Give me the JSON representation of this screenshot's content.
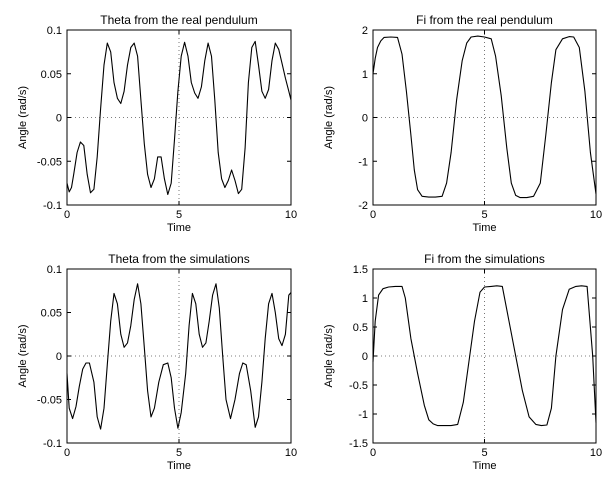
{
  "chart_data": [
    {
      "type": "line",
      "title": "Theta from the real pendulum",
      "xlabel": "Time",
      "ylabel": "Angle (rad/s)",
      "xlim": [
        0,
        10
      ],
      "ylim": [
        -0.1,
        0.1
      ],
      "xticks": [
        "0",
        "5",
        "10"
      ],
      "yticks": [
        "-0.1",
        "-0.05",
        "0",
        "0.05",
        "0.1"
      ],
      "grid": "dotted at x=5 and y=0",
      "series": [
        {
          "x": [
            0,
            0.1,
            0.2,
            0.3,
            0.45,
            0.6,
            0.75,
            0.9,
            1.05,
            1.2,
            1.35,
            1.5,
            1.65,
            1.8,
            1.95,
            2.1,
            2.25,
            2.4,
            2.55,
            2.7,
            2.85,
            3.0,
            3.15,
            3.3,
            3.45,
            3.6,
            3.75,
            3.9,
            4.05,
            4.2,
            4.35,
            4.5,
            4.65,
            4.8,
            4.95,
            5.1,
            5.25,
            5.4,
            5.55,
            5.7,
            5.85,
            6.0,
            6.15,
            6.3,
            6.45,
            6.6,
            6.75,
            6.9,
            7.05,
            7.2,
            7.35,
            7.5,
            7.65,
            7.8,
            7.95,
            8.1,
            8.25,
            8.4,
            8.55,
            8.7,
            8.85,
            9.0,
            9.15,
            9.3,
            9.45,
            9.6,
            9.75,
            9.9,
            10.0
          ],
          "y": [
            -0.075,
            -0.085,
            -0.08,
            -0.065,
            -0.04,
            -0.028,
            -0.032,
            -0.065,
            -0.086,
            -0.082,
            -0.045,
            0.01,
            0.06,
            0.085,
            0.075,
            0.04,
            0.022,
            0.016,
            0.03,
            0.06,
            0.08,
            0.085,
            0.07,
            0.02,
            -0.03,
            -0.065,
            -0.08,
            -0.07,
            -0.045,
            -0.045,
            -0.07,
            -0.088,
            -0.075,
            -0.025,
            0.03,
            0.07,
            0.086,
            0.07,
            0.04,
            0.028,
            0.022,
            0.035,
            0.065,
            0.085,
            0.07,
            0.02,
            -0.04,
            -0.07,
            -0.08,
            -0.072,
            -0.06,
            -0.072,
            -0.087,
            -0.082,
            -0.035,
            0.04,
            0.08,
            0.087,
            0.06,
            0.03,
            0.022,
            0.032,
            0.065,
            0.085,
            0.078,
            0.062,
            0.045,
            0.03,
            0.02
          ]
        }
      ]
    },
    {
      "type": "line",
      "title": "Fi from the real pendulum",
      "xlabel": "Time",
      "ylabel": "Angle (rad/s)",
      "xlim": [
        0,
        10
      ],
      "ylim": [
        -2,
        2
      ],
      "xticks": [
        "0",
        "5",
        "10"
      ],
      "yticks": [
        "-2",
        "-1",
        "0",
        "1",
        "2"
      ],
      "grid": "dotted at x=5 and y=0",
      "series": [
        {
          "x": [
            0,
            0.1,
            0.2,
            0.35,
            0.5,
            0.8,
            1.1,
            1.3,
            1.5,
            1.7,
            1.85,
            2.0,
            2.2,
            2.5,
            2.8,
            3.1,
            3.3,
            3.5,
            3.75,
            4.0,
            4.2,
            4.4,
            4.7,
            5.0,
            5.3,
            5.5,
            5.75,
            6.0,
            6.2,
            6.4,
            6.6,
            6.9,
            7.2,
            7.5,
            7.75,
            8.0,
            8.2,
            8.5,
            8.8,
            9.0,
            9.25,
            9.5,
            9.75,
            10.0
          ],
          "y": [
            1.0,
            1.35,
            1.6,
            1.75,
            1.83,
            1.84,
            1.83,
            1.45,
            0.6,
            -0.4,
            -1.2,
            -1.65,
            -1.8,
            -1.82,
            -1.82,
            -1.8,
            -1.5,
            -0.8,
            0.4,
            1.3,
            1.7,
            1.84,
            1.86,
            1.84,
            1.8,
            1.4,
            0.5,
            -0.7,
            -1.5,
            -1.78,
            -1.83,
            -1.83,
            -1.8,
            -1.5,
            -0.4,
            0.8,
            1.55,
            1.8,
            1.85,
            1.84,
            1.6,
            0.6,
            -0.8,
            -1.75
          ]
        }
      ]
    },
    {
      "type": "line",
      "title": "Theta from the simulations",
      "xlabel": "Time",
      "ylabel": "Angle (rad/s)",
      "xlim": [
        0,
        10
      ],
      "ylim": [
        -0.1,
        0.1
      ],
      "xticks": [
        "0",
        "5",
        "10"
      ],
      "yticks": [
        "-0.1",
        "-0.05",
        "0",
        "0.05",
        "0.1"
      ],
      "grid": "dotted at x=5 and y=0",
      "series": [
        {
          "x": [
            0,
            0.1,
            0.25,
            0.4,
            0.55,
            0.7,
            0.85,
            1.0,
            1.2,
            1.35,
            1.5,
            1.65,
            1.8,
            1.95,
            2.1,
            2.25,
            2.4,
            2.55,
            2.7,
            2.85,
            3.0,
            3.15,
            3.3,
            3.45,
            3.6,
            3.75,
            3.9,
            4.1,
            4.3,
            4.5,
            4.65,
            4.8,
            4.95,
            5.1,
            5.3,
            5.45,
            5.6,
            5.75,
            5.9,
            6.05,
            6.2,
            6.35,
            6.5,
            6.65,
            6.8,
            6.95,
            7.1,
            7.3,
            7.5,
            7.7,
            7.85,
            8.0,
            8.2,
            8.4,
            8.55,
            8.7,
            8.85,
            9.0,
            9.15,
            9.3,
            9.45,
            9.6,
            9.75,
            9.9,
            10.0
          ],
          "y": [
            -0.02,
            -0.06,
            -0.072,
            -0.058,
            -0.035,
            -0.015,
            -0.008,
            -0.008,
            -0.03,
            -0.07,
            -0.084,
            -0.06,
            -0.01,
            0.04,
            0.072,
            0.06,
            0.025,
            0.01,
            0.015,
            0.035,
            0.065,
            0.083,
            0.06,
            0.01,
            -0.04,
            -0.07,
            -0.06,
            -0.03,
            -0.01,
            -0.008,
            -0.025,
            -0.06,
            -0.083,
            -0.065,
            -0.02,
            0.035,
            0.072,
            0.06,
            0.025,
            0.01,
            0.015,
            0.04,
            0.07,
            0.083,
            0.055,
            0.0,
            -0.05,
            -0.072,
            -0.05,
            -0.02,
            -0.008,
            -0.01,
            -0.04,
            -0.082,
            -0.07,
            -0.03,
            0.02,
            0.06,
            0.072,
            0.05,
            0.02,
            0.012,
            0.025,
            0.07,
            0.073
          ]
        }
      ]
    },
    {
      "type": "line",
      "title": "Fi from the simulations",
      "xlabel": "Time",
      "ylabel": "Angle (rad/s)",
      "xlim": [
        0,
        10
      ],
      "ylim": [
        -1.5,
        1.5
      ],
      "xticks": [
        "0",
        "5",
        "10"
      ],
      "yticks": [
        "-1.5",
        "-1",
        "-0.5",
        "0",
        "0.5",
        "1",
        "1.5"
      ],
      "grid": "dotted at x=5 and y=0",
      "series": [
        {
          "x": [
            0,
            0.1,
            0.25,
            0.45,
            0.7,
            1.0,
            1.3,
            1.45,
            1.7,
            2.0,
            2.3,
            2.5,
            2.7,
            2.9,
            3.2,
            3.5,
            3.8,
            4.05,
            4.3,
            4.55,
            4.8,
            5.0,
            5.3,
            5.55,
            5.8,
            6.1,
            6.4,
            6.7,
            7.0,
            7.3,
            7.55,
            7.8,
            8.0,
            8.2,
            8.5,
            8.8,
            9.1,
            9.35,
            9.6,
            9.85,
            10.0
          ],
          "y": [
            -0.1,
            0.6,
            1.05,
            1.16,
            1.19,
            1.2,
            1.2,
            1.0,
            0.3,
            -0.3,
            -0.85,
            -1.1,
            -1.17,
            -1.2,
            -1.2,
            -1.2,
            -1.18,
            -0.8,
            -0.1,
            0.6,
            1.1,
            1.19,
            1.2,
            1.21,
            1.2,
            0.6,
            0.0,
            -0.6,
            -1.05,
            -1.18,
            -1.2,
            -1.19,
            -0.9,
            0.0,
            0.8,
            1.15,
            1.2,
            1.21,
            1.2,
            0.0,
            -1.15
          ]
        }
      ]
    }
  ]
}
